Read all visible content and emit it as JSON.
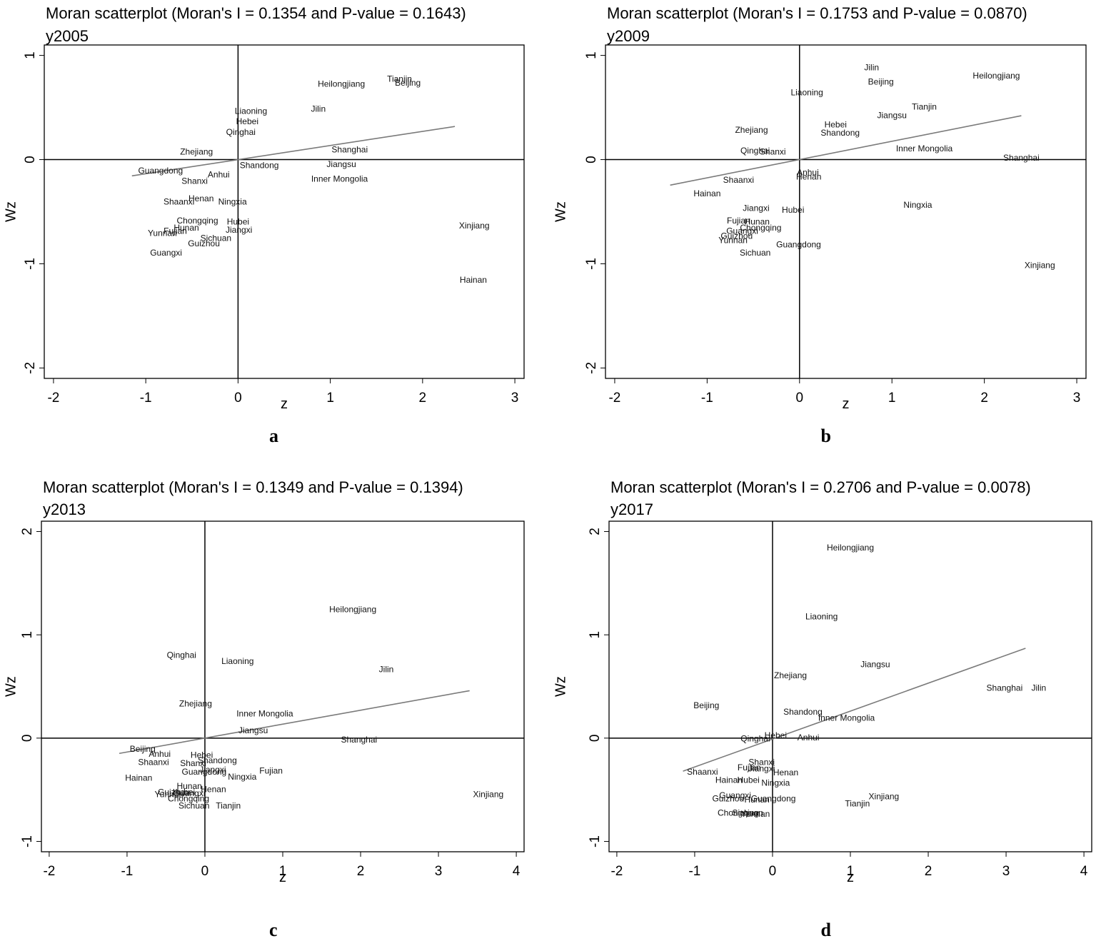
{
  "chart_data": [
    {
      "type": "scatter",
      "title": "Moran scatterplot (Moran's I = 0.1354 and P-value = 0.1643)",
      "subtitle": "y2005",
      "panel_label": "a",
      "xlabel": "z",
      "ylabel": "Wz",
      "xlim": [
        -2.1,
        3.1
      ],
      "ylim": [
        -2.1,
        1.1
      ],
      "xticks": [
        -2,
        -1,
        0,
        1,
        2,
        3
      ],
      "yticks": [
        -2,
        -1,
        0,
        1
      ],
      "fit_line": {
        "x": [
          -1.15,
          2.35
        ],
        "y": [
          -0.156,
          0.318
        ]
      },
      "points": [
        {
          "label": "Tianjin",
          "x": 1.75,
          "y": 0.77
        },
        {
          "label": "Beijing",
          "x": 1.84,
          "y": 0.73
        },
        {
          "label": "Heilongjiang",
          "x": 1.12,
          "y": 0.72
        },
        {
          "label": "Jilin",
          "x": 0.87,
          "y": 0.48
        },
        {
          "label": "Liaoning",
          "x": 0.14,
          "y": 0.46
        },
        {
          "label": "Hebei",
          "x": 0.1,
          "y": 0.36
        },
        {
          "label": "Qinghai",
          "x": 0.03,
          "y": 0.26
        },
        {
          "label": "Zhejiang",
          "x": -0.45,
          "y": 0.07
        },
        {
          "label": "Shanghai",
          "x": 1.21,
          "y": 0.09
        },
        {
          "label": "Shandong",
          "x": 0.23,
          "y": -0.06
        },
        {
          "label": "Jiangsu",
          "x": 1.12,
          "y": -0.05
        },
        {
          "label": "Guangdong",
          "x": -0.84,
          "y": -0.11
        },
        {
          "label": "Anhui",
          "x": -0.21,
          "y": -0.15
        },
        {
          "label": "Shanxi",
          "x": -0.47,
          "y": -0.21
        },
        {
          "label": "Inner Mongolia",
          "x": 1.1,
          "y": -0.19
        },
        {
          "label": "Henan",
          "x": -0.4,
          "y": -0.38
        },
        {
          "label": "Shaanxi",
          "x": -0.64,
          "y": -0.41
        },
        {
          "label": "Ningxia",
          "x": -0.06,
          "y": -0.41
        },
        {
          "label": "Chongqing",
          "x": -0.44,
          "y": -0.59
        },
        {
          "label": "Hubei",
          "x": 0.0,
          "y": -0.6
        },
        {
          "label": "Hunan",
          "x": -0.56,
          "y": -0.66
        },
        {
          "label": "Jiangxi",
          "x": 0.01,
          "y": -0.68
        },
        {
          "label": "Yunnan",
          "x": -0.82,
          "y": -0.71
        },
        {
          "label": "Fujian",
          "x": -0.68,
          "y": -0.69
        },
        {
          "label": "Sichuan",
          "x": -0.24,
          "y": -0.76
        },
        {
          "label": "Guizhou",
          "x": -0.37,
          "y": -0.81
        },
        {
          "label": "Guangxi",
          "x": -0.78,
          "y": -0.9
        },
        {
          "label": "Xinjiang",
          "x": 2.56,
          "y": -0.64
        },
        {
          "label": "Hainan",
          "x": 2.55,
          "y": -1.16
        }
      ]
    },
    {
      "type": "scatter",
      "title": "Moran scatterplot (Moran's I = 0.1753 and P-value = 0.0870)",
      "subtitle": "y2009",
      "panel_label": "b",
      "xlabel": "z",
      "ylabel": "Wz",
      "xlim": [
        -2.1,
        3.1
      ],
      "ylim": [
        -2.1,
        1.1
      ],
      "xticks": [
        -2,
        -1,
        0,
        1,
        2,
        3
      ],
      "yticks": [
        -2,
        -1,
        0,
        1
      ],
      "fit_line": {
        "x": [
          -1.4,
          2.4
        ],
        "y": [
          -0.245,
          0.421
        ]
      },
      "points": [
        {
          "label": "Jilin",
          "x": 0.78,
          "y": 0.88
        },
        {
          "label": "Heilongjiang",
          "x": 2.13,
          "y": 0.8
        },
        {
          "label": "Beijing",
          "x": 0.88,
          "y": 0.74
        },
        {
          "label": "Liaoning",
          "x": 0.08,
          "y": 0.64
        },
        {
          "label": "Tianjin",
          "x": 1.35,
          "y": 0.5
        },
        {
          "label": "Jiangsu",
          "x": 1.0,
          "y": 0.42
        },
        {
          "label": "Hebei",
          "x": 0.39,
          "y": 0.33
        },
        {
          "label": "Shandong",
          "x": 0.44,
          "y": 0.25
        },
        {
          "label": "Zhejiang",
          "x": -0.52,
          "y": 0.28
        },
        {
          "label": "Inner Mongolia",
          "x": 1.35,
          "y": 0.1
        },
        {
          "label": "Qinghai",
          "x": -0.48,
          "y": 0.08
        },
        {
          "label": "Shanxi",
          "x": -0.29,
          "y": 0.07
        },
        {
          "label": "Shanghai",
          "x": 2.4,
          "y": 0.01
        },
        {
          "label": "Anhui",
          "x": 0.09,
          "y": -0.13
        },
        {
          "label": "Henan",
          "x": 0.1,
          "y": -0.17
        },
        {
          "label": "Shaanxi",
          "x": -0.66,
          "y": -0.2
        },
        {
          "label": "Hainan",
          "x": -1.0,
          "y": -0.33
        },
        {
          "label": "Jiangxi",
          "x": -0.47,
          "y": -0.47
        },
        {
          "label": "Hubei",
          "x": -0.07,
          "y": -0.49
        },
        {
          "label": "Ningxia",
          "x": 1.28,
          "y": -0.44
        },
        {
          "label": "Fujian",
          "x": -0.66,
          "y": -0.59
        },
        {
          "label": "Hunan",
          "x": -0.46,
          "y": -0.6
        },
        {
          "label": "Chongqing",
          "x": -0.42,
          "y": -0.66
        },
        {
          "label": "Guangxi",
          "x": -0.62,
          "y": -0.69
        },
        {
          "label": "Guizhou",
          "x": -0.68,
          "y": -0.74
        },
        {
          "label": "Yunnan",
          "x": -0.72,
          "y": -0.78
        },
        {
          "label": "Sichuan",
          "x": -0.48,
          "y": -0.9
        },
        {
          "label": "Guangdong",
          "x": -0.01,
          "y": -0.82
        },
        {
          "label": "Xinjiang",
          "x": 2.6,
          "y": -1.02
        }
      ]
    },
    {
      "type": "scatter",
      "title": "Moran scatterplot (Moran's I = 0.1349 and P-value = 0.1394)",
      "subtitle": "y2013",
      "panel_label": "c",
      "xlabel": "z",
      "ylabel": "Wz",
      "xlim": [
        -2.1,
        4.1
      ],
      "ylim": [
        -1.1,
        2.1
      ],
      "xticks": [
        -2,
        -1,
        0,
        1,
        2,
        3,
        4
      ],
      "yticks": [
        -1,
        0,
        1,
        2
      ],
      "fit_line": {
        "x": [
          -1.1,
          3.4
        ],
        "y": [
          -0.148,
          0.459
        ]
      },
      "points": [
        {
          "label": "Heilongjiang",
          "x": 1.9,
          "y": 1.24
        },
        {
          "label": "Qinghai",
          "x": -0.3,
          "y": 0.8
        },
        {
          "label": "Liaoning",
          "x": 0.42,
          "y": 0.74
        },
        {
          "label": "Jilin",
          "x": 2.33,
          "y": 0.66
        },
        {
          "label": "Zhejiang",
          "x": -0.12,
          "y": 0.33
        },
        {
          "label": "Inner Mongolia",
          "x": 0.77,
          "y": 0.23
        },
        {
          "label": "Jiangsu",
          "x": 0.62,
          "y": 0.07
        },
        {
          "label": "Shanghai",
          "x": 1.98,
          "y": -0.02
        },
        {
          "label": "Beijing",
          "x": -0.8,
          "y": -0.11
        },
        {
          "label": "Anhui",
          "x": -0.58,
          "y": -0.16
        },
        {
          "label": "Hebei",
          "x": -0.04,
          "y": -0.17
        },
        {
          "label": "Shandong",
          "x": 0.16,
          "y": -0.22
        },
        {
          "label": "Shaanxi",
          "x": -0.66,
          "y": -0.24
        },
        {
          "label": "Shanxi",
          "x": -0.15,
          "y": -0.25
        },
        {
          "label": "Jiangxi",
          "x": 0.1,
          "y": -0.31
        },
        {
          "label": "Guangdong",
          "x": -0.01,
          "y": -0.33
        },
        {
          "label": "Fujian",
          "x": 0.85,
          "y": -0.32
        },
        {
          "label": "Ningxia",
          "x": 0.48,
          "y": -0.38
        },
        {
          "label": "Hainan",
          "x": -0.85,
          "y": -0.39
        },
        {
          "label": "Hunan",
          "x": -0.2,
          "y": -0.47
        },
        {
          "label": "Henan",
          "x": 0.11,
          "y": -0.5
        },
        {
          "label": "Guizhou",
          "x": -0.4,
          "y": -0.53
        },
        {
          "label": "Hubei",
          "x": -0.27,
          "y": -0.53
        },
        {
          "label": "Yunnan",
          "x": -0.46,
          "y": -0.55
        },
        {
          "label": "Guangxi",
          "x": -0.2,
          "y": -0.54
        },
        {
          "label": "Chongqing",
          "x": -0.21,
          "y": -0.59
        },
        {
          "label": "Sichuan",
          "x": -0.14,
          "y": -0.66
        },
        {
          "label": "Tianjin",
          "x": 0.3,
          "y": -0.66
        },
        {
          "label": "Xinjiang",
          "x": 3.64,
          "y": -0.55
        }
      ]
    },
    {
      "type": "scatter",
      "title": "Moran scatterplot (Moran's I = 0.2706 and P-value = 0.0078)",
      "subtitle": "y2017",
      "panel_label": "d",
      "xlabel": "z",
      "ylabel": "Wz",
      "xlim": [
        -2.1,
        4.1
      ],
      "ylim": [
        -1.1,
        2.1
      ],
      "xticks": [
        -2,
        -1,
        0,
        1,
        2,
        3,
        4
      ],
      "yticks": [
        -1,
        0,
        1,
        2
      ],
      "fit_line": {
        "x": [
          -1.15,
          3.25
        ],
        "y": [
          -0.32,
          0.87
        ]
      },
      "points": [
        {
          "label": "Heilongjiang",
          "x": 1.0,
          "y": 1.84
        },
        {
          "label": "Liaoning",
          "x": 0.63,
          "y": 1.17
        },
        {
          "label": "Jiangsu",
          "x": 1.32,
          "y": 0.71
        },
        {
          "label": "Zhejiang",
          "x": 0.23,
          "y": 0.6
        },
        {
          "label": "Shanghai",
          "x": 2.98,
          "y": 0.48
        },
        {
          "label": "Jilin",
          "x": 3.42,
          "y": 0.48
        },
        {
          "label": "Beijing",
          "x": -0.85,
          "y": 0.31
        },
        {
          "label": "Shandong",
          "x": 0.39,
          "y": 0.25
        },
        {
          "label": "Inner Mongolia",
          "x": 0.95,
          "y": 0.19
        },
        {
          "label": "Hebei",
          "x": 0.04,
          "y": 0.02
        },
        {
          "label": "Anhui",
          "x": 0.46,
          "y": 0.0
        },
        {
          "label": "Qinghai",
          "x": -0.22,
          "y": -0.01
        },
        {
          "label": "Shanxi",
          "x": -0.14,
          "y": -0.24
        },
        {
          "label": "Fujian",
          "x": -0.3,
          "y": -0.29
        },
        {
          "label": "Jiangxi",
          "x": -0.14,
          "y": -0.3
        },
        {
          "label": "Shaanxi",
          "x": -0.9,
          "y": -0.33
        },
        {
          "label": "Henan",
          "x": 0.17,
          "y": -0.34
        },
        {
          "label": "Hainan",
          "x": -0.56,
          "y": -0.41
        },
        {
          "label": "Hubei",
          "x": -0.31,
          "y": -0.41
        },
        {
          "label": "Ningxia",
          "x": 0.04,
          "y": -0.44
        },
        {
          "label": "Guangxi",
          "x": -0.48,
          "y": -0.56
        },
        {
          "label": "Guizhou",
          "x": -0.57,
          "y": -0.59
        },
        {
          "label": "Guangdong",
          "x": 0.01,
          "y": -0.59
        },
        {
          "label": "Hunan",
          "x": -0.2,
          "y": -0.6
        },
        {
          "label": "Chongqing",
          "x": -0.44,
          "y": -0.73
        },
        {
          "label": "Sichuan",
          "x": -0.32,
          "y": -0.73
        },
        {
          "label": "Yunnan",
          "x": -0.22,
          "y": -0.74
        },
        {
          "label": "Xinjiang",
          "x": 1.43,
          "y": -0.57
        },
        {
          "label": "Tianjin",
          "x": 1.09,
          "y": -0.64
        }
      ]
    }
  ]
}
